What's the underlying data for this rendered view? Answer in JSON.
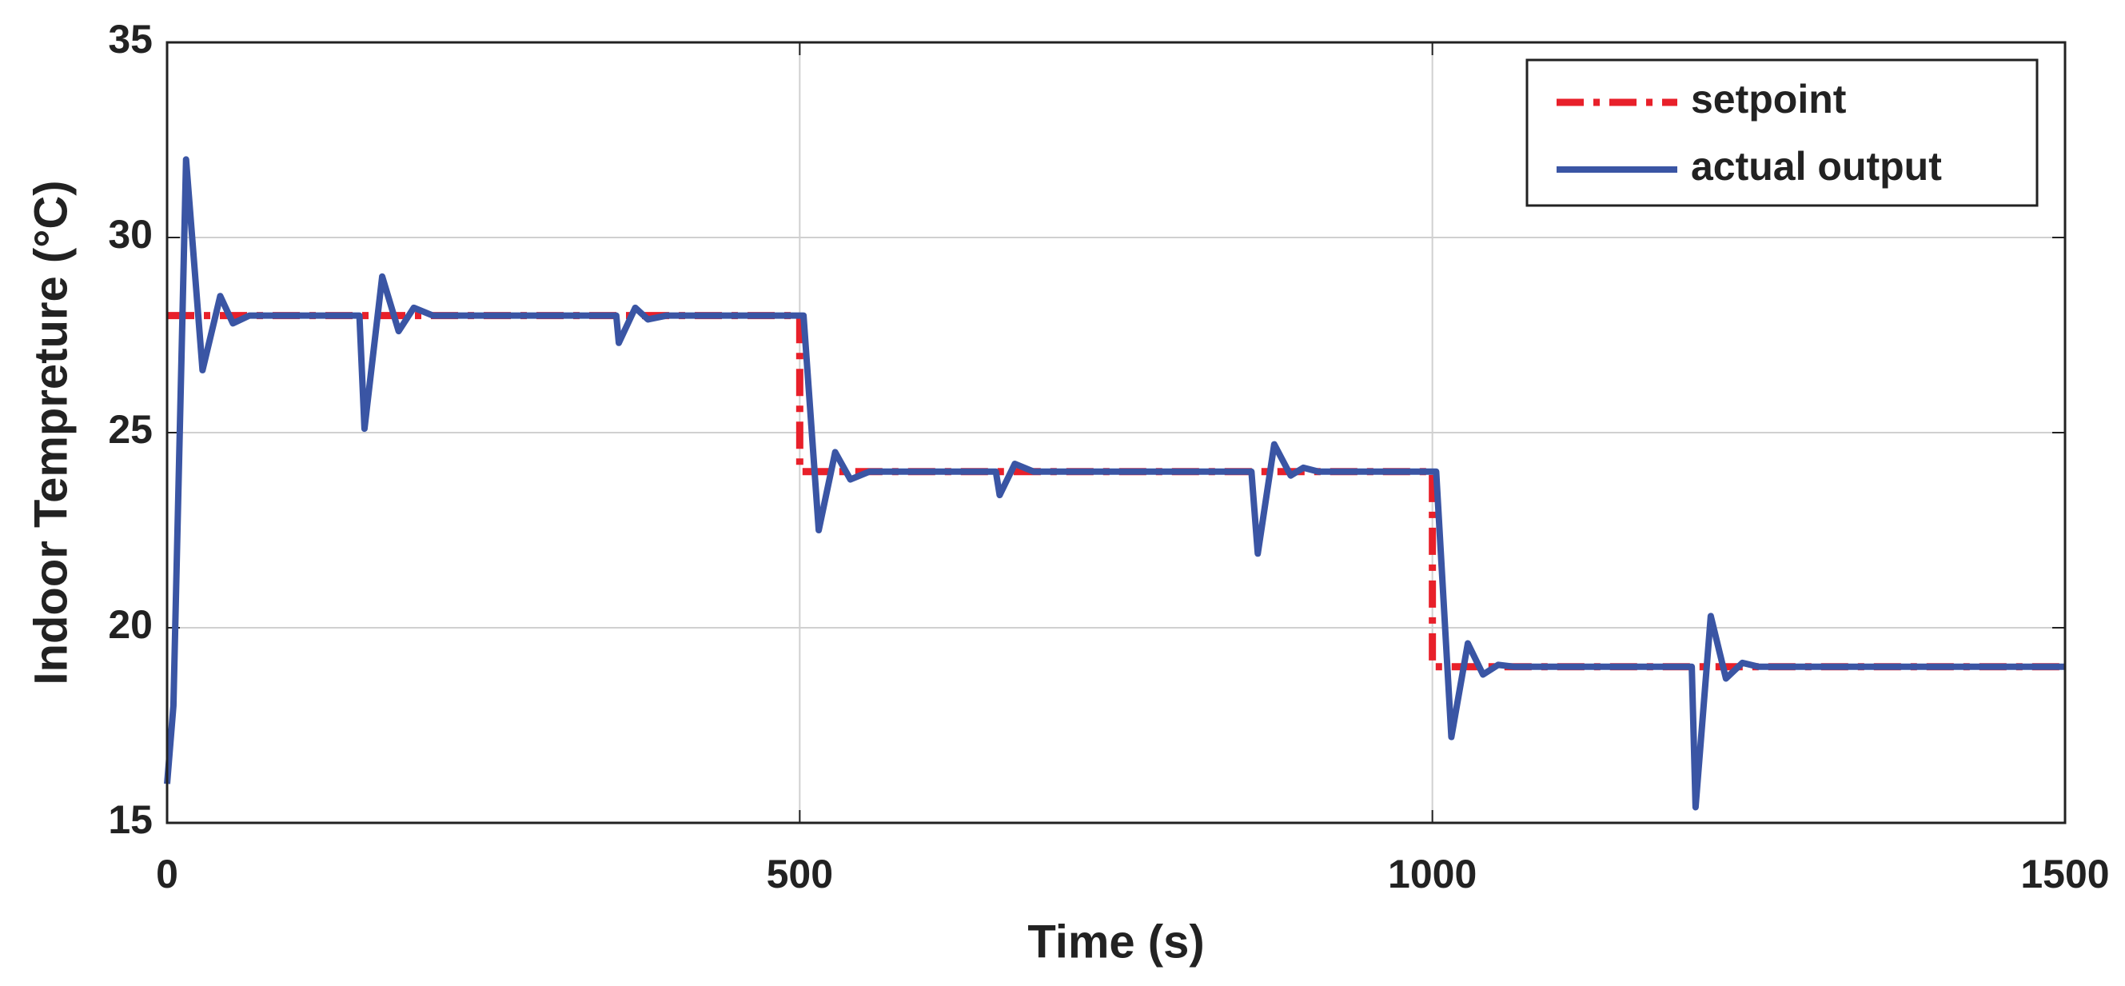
{
  "chart_data": {
    "type": "line",
    "xlabel": "Time (s)",
    "ylabel": "Indoor Tempreture (°C)",
    "xlim": [
      0,
      1500
    ],
    "xticks": [
      0,
      500,
      1000,
      1500
    ],
    "ylim": [
      15,
      35
    ],
    "yticks": [
      15,
      20,
      25,
      30,
      35
    ],
    "grid": true,
    "legend": "upper right",
    "series": [
      {
        "name": "setpoint",
        "color": "#e8202a",
        "style": "dashdot",
        "x": [
          0,
          500,
          500,
          1000,
          1000,
          1500
        ],
        "values": [
          28,
          28,
          24,
          24,
          19,
          19
        ]
      },
      {
        "name": "actual output",
        "color": "#3a55a4",
        "style": "solid",
        "x": [
          0,
          5,
          15,
          28,
          42,
          52,
          65,
          152,
          156,
          170,
          183,
          195,
          210,
          355,
          357,
          370,
          380,
          395,
          503,
          515,
          528,
          540,
          555,
          655,
          658,
          670,
          685,
          857,
          862,
          875,
          888,
          898,
          910,
          1003,
          1015,
          1028,
          1040,
          1052,
          1065,
          1205,
          1208,
          1220,
          1232,
          1245,
          1258,
          1500
        ],
        "values": [
          16,
          18,
          32,
          26.6,
          28.5,
          27.8,
          28,
          28,
          25.1,
          29,
          27.6,
          28.2,
          28,
          28,
          27.3,
          28.2,
          27.9,
          28,
          28,
          22.5,
          24.5,
          23.8,
          24,
          24,
          23.4,
          24.2,
          24,
          24,
          21.9,
          24.7,
          23.9,
          24.1,
          24,
          24,
          17.2,
          19.6,
          18.8,
          19.05,
          19,
          19,
          15.4,
          20.3,
          18.7,
          19.1,
          19,
          19
        ]
      }
    ]
  }
}
